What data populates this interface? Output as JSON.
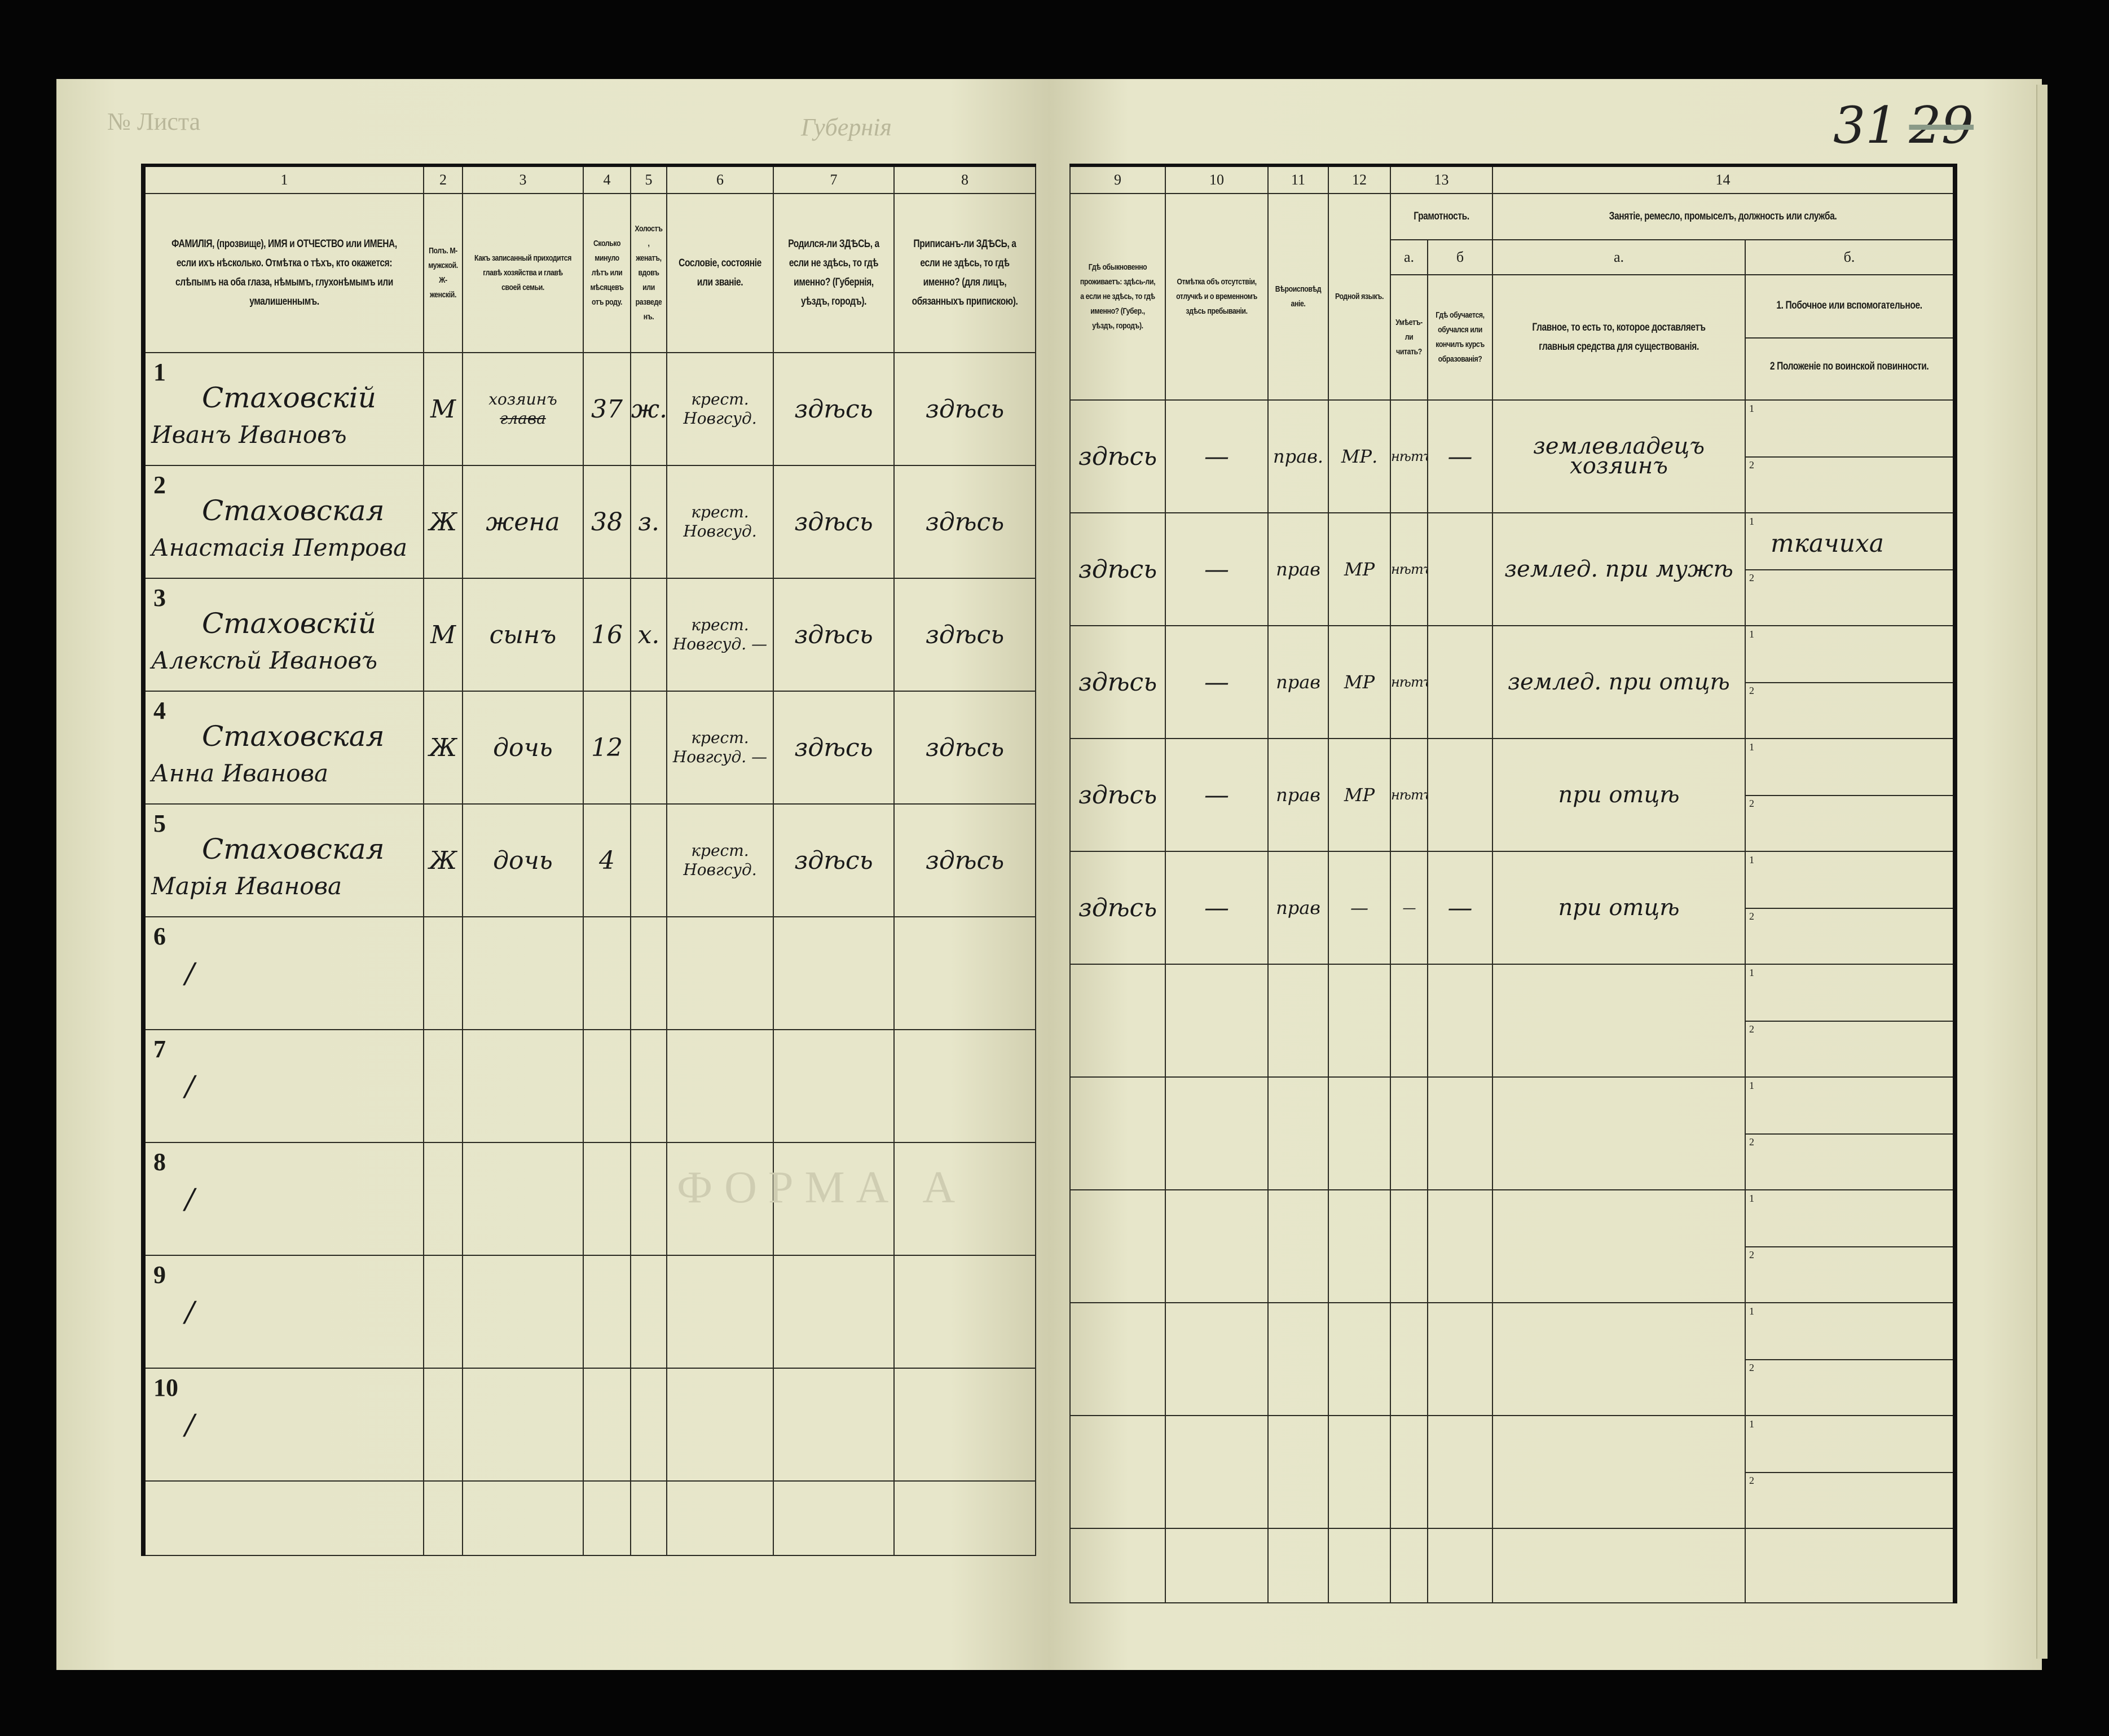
{
  "page_number": {
    "current": "31",
    "struck": "29"
  },
  "faint_print": {
    "top_left": "№ Листа",
    "top_center": "Губернія",
    "watermark": "ФОРМА А"
  },
  "header": {
    "left_columns": [
      {
        "num": "1",
        "text": "ФАМИЛІЯ, (прозвище), ИМЯ и ОТЧЕСТВО или ИМЕНА, если ихъ нѣсколько. Отмѣтка о тѣхъ, кто окажется: слѣпымъ на оба глаза, нѣмымъ, глухонѣмымъ или умалишеннымъ."
      },
      {
        "num": "2",
        "text": "Полъ. М-мужской. Ж-женскій."
      },
      {
        "num": "3",
        "text": "Какъ записанный приходится главѣ хозяйства и главѣ своей семьи."
      },
      {
        "num": "4",
        "text": "Сколько минуло лѣтъ или мѣсяцевъ отъ роду."
      },
      {
        "num": "5",
        "text": "Холостъ, женатъ, вдовъ или разведенъ."
      },
      {
        "num": "6",
        "text": "Сословіе, состояніе или званіе."
      },
      {
        "num": "7",
        "text": "Родился-ли ЗДѢСЬ, а если не здѣсь, то гдѣ именно? (Губернія, уѣздъ, городъ)."
      },
      {
        "num": "8",
        "text": "Приписанъ-ли ЗДѢСЬ, а если не здѣсь, то гдѣ именно? (для лицъ, обязанныхъ припискою)."
      }
    ],
    "right_columns": [
      {
        "num": "9",
        "text": "Гдѣ обыкновенно проживаетъ: здѣсь-ли, а если не здѣсь, то гдѣ именно? (Губер., уѣздъ, городъ)."
      },
      {
        "num": "10",
        "text": "Отмѣтка объ отсутствіи, отлучкѣ и о временномъ здѣсь пребываніи."
      },
      {
        "num": "11",
        "text": "Вѣроисповѣданіе."
      },
      {
        "num": "12",
        "text": "Родной языкъ."
      },
      {
        "num": "13",
        "text": "Грамотность."
      },
      {
        "num": "14",
        "text": "Занятіе, ремесло, промыселъ, должность или служба."
      }
    ],
    "col13": {
      "a_label": "а.",
      "a_text": "Умѣетъ-ли читать?",
      "b_label": "б",
      "b_text": "Гдѣ обучается, обучался или кончилъ курсъ образованія?"
    },
    "col14": {
      "a_label": "а.",
      "a_text": "Главное, то есть то, которое доставляетъ главныя средства для существованія.",
      "b_label": "б.",
      "b1_text": "1. Побочное или вспомогательное.",
      "b2_text": "2 Положеніе по воинской повинности."
    }
  },
  "sub_markers": {
    "one": "1",
    "two": "2"
  },
  "rows": [
    {
      "num": "1",
      "surname": "Стаховскій",
      "given": "Иванъ Ивановъ",
      "sex": "М",
      "relation": "хозяинъ",
      "relation_struck": "глава",
      "age": "37",
      "marital": "ж.",
      "estate": "крест. Новгсуд.",
      "born": "здѣсь",
      "registered": "здѣсь",
      "residence": "здѣсь",
      "absence": "—",
      "religion": "прав.",
      "language": "МР.",
      "literate": "нѣтъ",
      "education": "—",
      "occupation": "землевладецъ хозяинъ",
      "side": ""
    },
    {
      "num": "2",
      "surname": "Стаховская",
      "given": "Анастасія Петрова",
      "sex": "Ж",
      "relation": "жена",
      "relation_struck": "",
      "age": "38",
      "marital": "з.",
      "estate": "крест. Новгсуд.",
      "born": "здѣсь",
      "registered": "здѣсь",
      "residence": "здѣсь",
      "absence": "—",
      "religion": "прав",
      "language": "МР",
      "literate": "нѣтъ",
      "education": "",
      "occupation": "землед. при мужѣ",
      "side": "ткачиха"
    },
    {
      "num": "3",
      "surname": "Стаховскій",
      "given": "Алексѣй Ивановъ",
      "sex": "М",
      "relation": "сынъ",
      "relation_struck": "",
      "age": "16",
      "marital": "х.",
      "estate": "крест. Новгсуд. —",
      "born": "здѣсь",
      "registered": "здѣсь",
      "residence": "здѣсь",
      "absence": "—",
      "religion": "прав",
      "language": "МР",
      "literate": "нѣтъ",
      "education": "",
      "occupation": "землед. при отцѣ",
      "side": ""
    },
    {
      "num": "4",
      "surname": "Стаховская",
      "given": "Анна Иванова",
      "sex": "Ж",
      "relation": "дочь",
      "relation_struck": "",
      "age": "12",
      "marital": "",
      "estate": "крест. Новгсуд. —",
      "born": "здѣсь",
      "registered": "здѣсь",
      "residence": "здѣсь",
      "absence": "—",
      "religion": "прав",
      "language": "МР",
      "literate": "нѣтъ",
      "education": "",
      "occupation": "при отцѣ",
      "side": ""
    },
    {
      "num": "5",
      "surname": "Стаховская",
      "given": "Марія Иванова",
      "sex": "Ж",
      "relation": "дочь",
      "relation_struck": "",
      "age": "4",
      "marital": "",
      "estate": "крест. Новгсуд.",
      "born": "здѣсь",
      "registered": "здѣсь",
      "residence": "здѣсь",
      "absence": "—",
      "religion": "прав",
      "language": "—",
      "literate": "—",
      "education": "—",
      "occupation": "при отцѣ",
      "side": ""
    },
    {
      "num": "6"
    },
    {
      "num": "7"
    },
    {
      "num": "8"
    },
    {
      "num": "9"
    },
    {
      "num": "10"
    }
  ]
}
